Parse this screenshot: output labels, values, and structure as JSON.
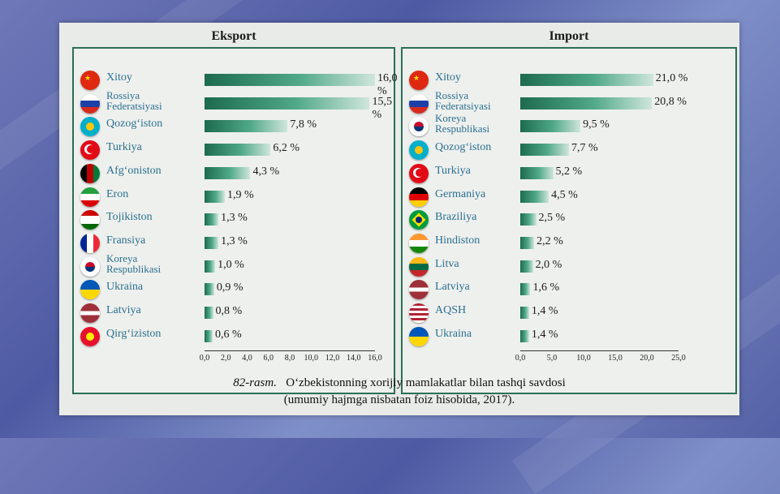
{
  "chart_data": [
    {
      "type": "bar",
      "title": "Eksport",
      "categories": [
        "Xitoy",
        "Rossiya\nFederatsiyasi",
        "Qozog‘iston",
        "Turkiya",
        "Afg‘oniston",
        "Eron",
        "Tojikiston",
        "Fransiya",
        "Koreya\nRespublikasi",
        "Ukraina",
        "Latviya",
        "Qirg‘iziston"
      ],
      "values": [
        16.0,
        15.5,
        7.8,
        6.2,
        4.3,
        1.9,
        1.3,
        1.3,
        1.0,
        0.9,
        0.8,
        0.6
      ],
      "value_labels": [
        "16,0 %",
        "15,5 %",
        "7,8 %",
        "6,2 %",
        "4,3 %",
        "1,9 %",
        "1,3 %",
        "1,3 %",
        "1,0 %",
        "0,9 %",
        "0,8 %",
        "0,6 %"
      ],
      "flags": [
        "china",
        "russia",
        "kazakhstan",
        "turkey",
        "afghanistan",
        "iran",
        "tajikistan",
        "france",
        "south-korea",
        "ukraine",
        "latvia",
        "kyrgyzstan"
      ],
      "xlim": [
        0,
        16
      ],
      "ticks": [
        "0,0",
        "2,0",
        "4,0",
        "6,0",
        "8,0",
        "10,0",
        "12,0",
        "14,0",
        "16,0"
      ],
      "tick_values": [
        0,
        2,
        4,
        6,
        8,
        10,
        12,
        14,
        16
      ],
      "colors": {
        "bar": "#1d6b4f"
      }
    },
    {
      "type": "bar",
      "title": "Import",
      "categories": [
        "Xitoy",
        "Rossiya\nFederatsiyasi",
        "Koreya\nRespublikasi",
        "Qozog‘iston",
        "Turkiya",
        "Germaniya",
        "Braziliya",
        "Hindiston",
        "Litva",
        "Latviya",
        "AQSH",
        "Ukraina"
      ],
      "values": [
        21.0,
        20.8,
        9.5,
        7.7,
        5.2,
        4.5,
        2.5,
        2.2,
        2.0,
        1.6,
        1.4,
        1.4
      ],
      "value_labels": [
        "21,0 %",
        "20,8 %",
        "9,5 %",
        "7,7 %",
        "5,2 %",
        "4,5 %",
        "2,5 %",
        "2,2 %",
        "2,0 %",
        "1,6 %",
        "1,4 %",
        "1,4 %"
      ],
      "flags": [
        "china",
        "russia",
        "south-korea",
        "kazakhstan",
        "turkey",
        "germany",
        "brazil",
        "india",
        "lithuania",
        "latvia",
        "usa",
        "ukraine"
      ],
      "xlim": [
        0,
        25
      ],
      "ticks": [
        "0,0",
        "5,0",
        "10,0",
        "15,0",
        "20,0",
        "25,0"
      ],
      "tick_values": [
        0,
        5,
        10,
        15,
        20,
        25
      ],
      "colors": {
        "bar": "#1d6b4f"
      }
    }
  ],
  "caption": {
    "label": "82-rasm.",
    "line1": "O‘zbekistonning xorijiy mamlakatlar bilan tashqi savdosi",
    "line2": "(umumiy hajmga nisbatan foiz hisobida, 2017)."
  }
}
